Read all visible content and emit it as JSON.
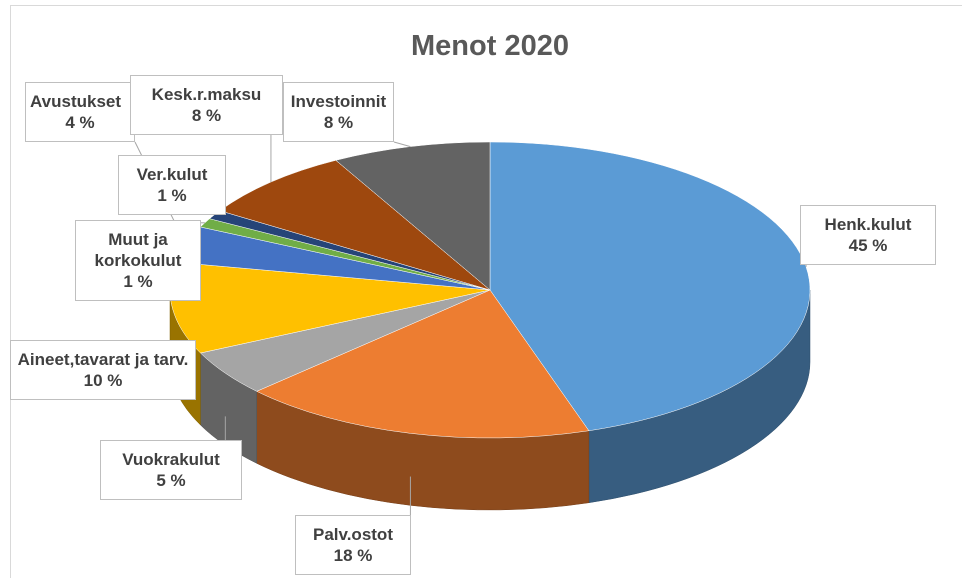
{
  "chart_data": {
    "type": "pie",
    "title": "Menot 2020",
    "categories": [
      "Henk.kulut",
      "Palv.ostot",
      "Vuokrakulut",
      "Aineet,tavarat ja tarv.",
      "Avustukset",
      "Muut ja korkokulut",
      "Ver.kulut",
      "Kesk.r.maksu",
      "Investoinnit"
    ],
    "values": [
      45,
      18,
      5,
      10,
      4,
      1,
      1,
      8,
      8
    ],
    "value_labels": [
      "45 %",
      "18 %",
      "5 %",
      "10 %",
      "4 %",
      "1 %",
      "1 %",
      "8 %",
      "8 %"
    ],
    "colors": [
      "#5b9bd5",
      "#ed7d31",
      "#a5a5a5",
      "#ffc000",
      "#4472c4",
      "#70ad47",
      "#264478",
      "#9e480e",
      "#636363"
    ]
  }
}
